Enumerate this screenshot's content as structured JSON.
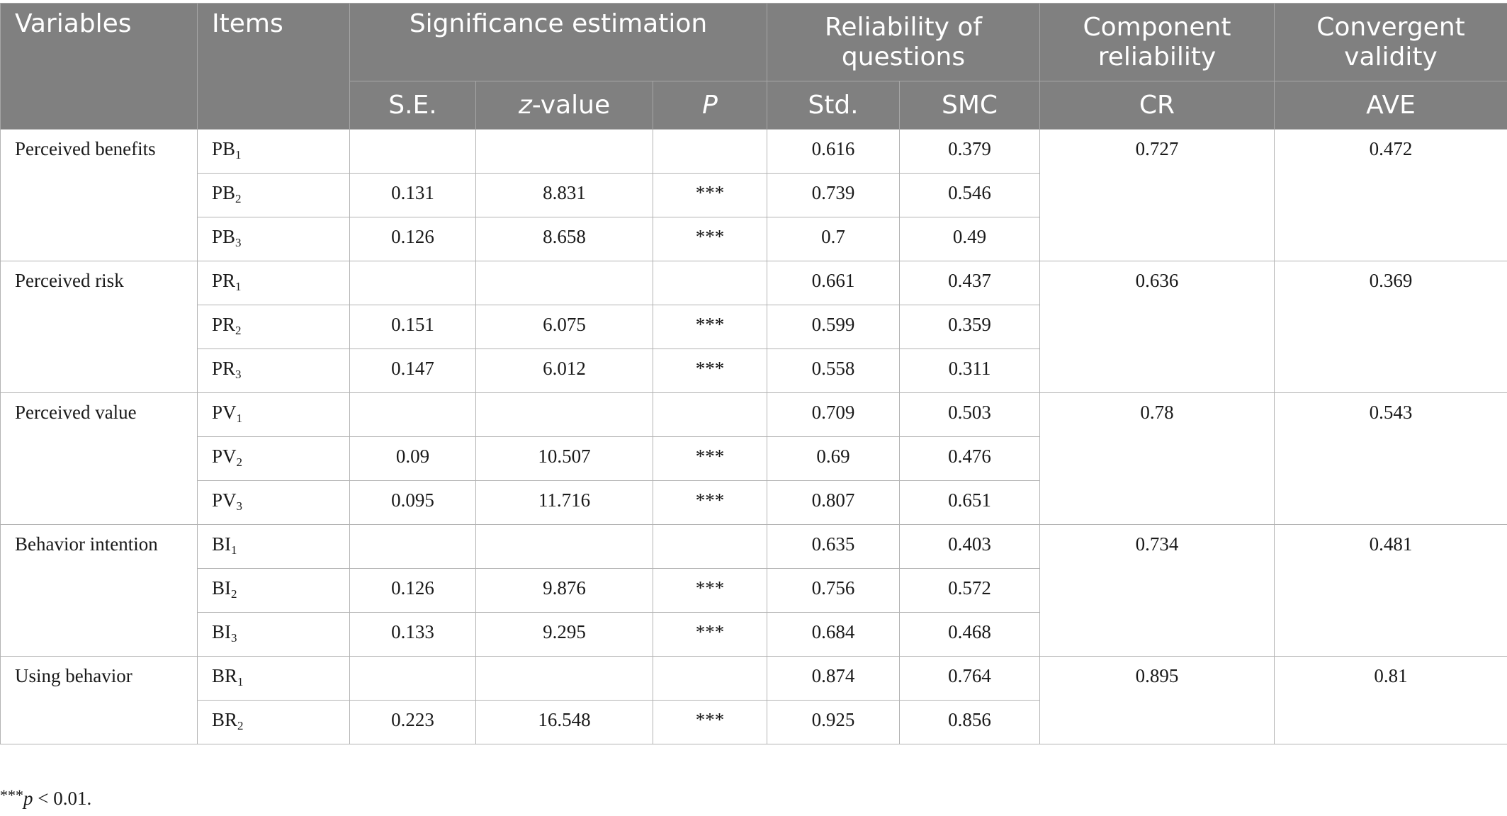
{
  "headers": {
    "variables": "Variables",
    "items": "Items",
    "significance": "Significance estimation",
    "reliability_line1": "Reliability of",
    "reliability_line2": "questions",
    "component_line1": "Component",
    "component_line2": "reliability",
    "convergent_line1": "Convergent",
    "convergent_line2": "validity",
    "se": "S.E.",
    "z_italic": "z",
    "z_rest": "-value",
    "p": "P",
    "std": "Std.",
    "smc": "SMC",
    "cr": "CR",
    "ave": "AVE"
  },
  "groups": [
    {
      "variable": "Perceived benefits",
      "cr": "0.727",
      "ave": "0.472",
      "rows": [
        {
          "item": "PB",
          "sub": "1",
          "se": "",
          "z": "",
          "p": "",
          "std": "0.616",
          "smc": "0.379"
        },
        {
          "item": "PB",
          "sub": "2",
          "se": "0.131",
          "z": "8.831",
          "p": "***",
          "std": "0.739",
          "smc": "0.546"
        },
        {
          "item": "PB",
          "sub": "3",
          "se": "0.126",
          "z": "8.658",
          "p": "***",
          "std": "0.7",
          "smc": "0.49"
        }
      ]
    },
    {
      "variable": "Perceived risk",
      "cr": "0.636",
      "ave": "0.369",
      "rows": [
        {
          "item": "PR",
          "sub": "1",
          "se": "",
          "z": "",
          "p": "",
          "std": "0.661",
          "smc": "0.437"
        },
        {
          "item": "PR",
          "sub": "2",
          "se": "0.151",
          "z": "6.075",
          "p": "***",
          "std": "0.599",
          "smc": "0.359"
        },
        {
          "item": "PR",
          "sub": "3",
          "se": "0.147",
          "z": "6.012",
          "p": "***",
          "std": "0.558",
          "smc": "0.311"
        }
      ]
    },
    {
      "variable": "Perceived value",
      "cr": "0.78",
      "ave": "0.543",
      "rows": [
        {
          "item": "PV",
          "sub": "1",
          "se": "",
          "z": "",
          "p": "",
          "std": "0.709",
          "smc": "0.503"
        },
        {
          "item": "PV",
          "sub": "2",
          "se": "0.09",
          "z": "10.507",
          "p": "***",
          "std": "0.69",
          "smc": "0.476"
        },
        {
          "item": "PV",
          "sub": "3",
          "se": "0.095",
          "z": "11.716",
          "p": "***",
          "std": "0.807",
          "smc": "0.651"
        }
      ]
    },
    {
      "variable": "Behavior intention",
      "cr": "0.734",
      "ave": "0.481",
      "rows": [
        {
          "item": "BI",
          "sub": "1",
          "se": "",
          "z": "",
          "p": "",
          "std": "0.635",
          "smc": "0.403"
        },
        {
          "item": "BI",
          "sub": "2",
          "se": "0.126",
          "z": "9.876",
          "p": "***",
          "std": "0.756",
          "smc": "0.572"
        },
        {
          "item": "BI",
          "sub": "3",
          "se": "0.133",
          "z": "9.295",
          "p": "***",
          "std": "0.684",
          "smc": "0.468"
        }
      ]
    },
    {
      "variable": "Using behavior",
      "cr": "0.895",
      "ave": "0.81",
      "rows": [
        {
          "item": "BR",
          "sub": "1",
          "se": "",
          "z": "",
          "p": "",
          "std": "0.874",
          "smc": "0.764"
        },
        {
          "item": "BR",
          "sub": "2",
          "se": "0.223",
          "z": "16.548",
          "p": "***",
          "std": "0.925",
          "smc": "0.856"
        }
      ]
    }
  ],
  "footnote": {
    "stars": "***",
    "p_italic": "p",
    "rest": " < 0.01."
  }
}
